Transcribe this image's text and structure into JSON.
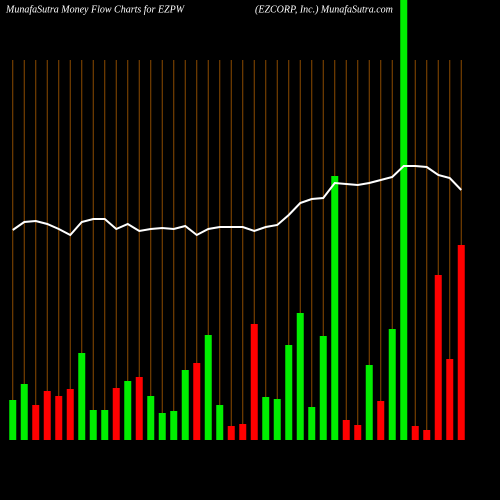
{
  "chart_data": {
    "type": "bar",
    "title": "MunafaSutra  Money Flow  Charts for EZPW",
    "subtitle": "(EZCORP,  Inc.) MunafaSutra.com",
    "categories": [
      null,
      null,
      null,
      null,
      null,
      null,
      null,
      null,
      null,
      null,
      null,
      null,
      null,
      null,
      null,
      null,
      null,
      null,
      null,
      null,
      null,
      null,
      null,
      null,
      null,
      null,
      null,
      null,
      null,
      null,
      null,
      null,
      null,
      null,
      null,
      null,
      null,
      null,
      null,
      null
    ],
    "values": [
      40,
      56,
      35,
      49,
      44,
      51,
      87,
      30,
      30,
      52,
      59,
      63,
      44,
      27,
      29,
      70,
      77,
      105,
      35,
      14,
      16,
      116,
      43,
      41,
      95,
      127,
      33,
      104,
      264,
      20,
      15,
      75,
      39,
      111,
      440,
      14,
      10,
      165,
      81,
      195
    ],
    "colors": [
      "#00ee00",
      "#00ee00",
      "#ff0000",
      "#ff0000",
      "#ff0000",
      "#ff0000",
      "#00ee00",
      "#00ee00",
      "#00ee00",
      "#ff0000",
      "#00ee00",
      "#ff0000",
      "#00ee00",
      "#00ee00",
      "#00ee00",
      "#00ee00",
      "#ff0000",
      "#00ee00",
      "#00ee00",
      "#ff0000",
      "#ff0000",
      "#ff0000",
      "#00ee00",
      "#00ee00",
      "#00ee00",
      "#00ee00",
      "#00ee00",
      "#00ee00",
      "#00ee00",
      "#ff0000",
      "#ff0000",
      "#00ee00",
      "#ff0000",
      "#00ee00",
      "#00ee00",
      "#ff0000",
      "#ff0000",
      "#ff0000",
      "#ff0000",
      "#ff0000"
    ],
    "line": {
      "color": "#ffffff",
      "values": [
        210,
        218,
        219,
        216,
        211,
        205,
        218,
        221,
        221,
        211,
        216,
        209,
        211,
        212,
        211,
        214,
        205,
        211,
        213,
        213,
        213,
        209,
        213,
        215,
        225,
        237,
        241,
        242,
        257,
        256,
        255,
        257,
        260,
        263,
        274,
        274,
        273,
        265,
        262,
        250
      ]
    },
    "ylim": [
      0,
      440
    ],
    "grid": true,
    "grid_color": "#8b4a00"
  }
}
